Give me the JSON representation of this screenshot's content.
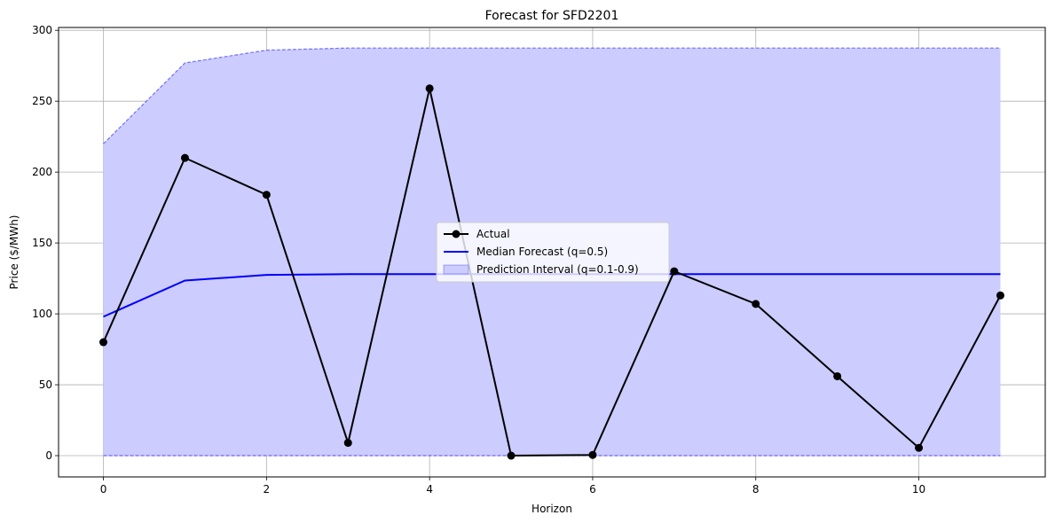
{
  "chart_data": {
    "type": "line",
    "title": "Forecast for SFD2201",
    "xlabel": "Horizon",
    "ylabel": "Price ($/MWh)",
    "xlim": [
      -0.55,
      11.55
    ],
    "ylim": [
      -15,
      302
    ],
    "xticks": [
      0,
      2,
      4,
      6,
      8,
      10
    ],
    "yticks": [
      0,
      50,
      100,
      150,
      200,
      250,
      300
    ],
    "grid": true,
    "legend_position": "center",
    "x": [
      0,
      1,
      2,
      3,
      4,
      5,
      6,
      7,
      8,
      9,
      10,
      11
    ],
    "series": [
      {
        "name": "Actual",
        "kind": "line-marker",
        "color": "#000000",
        "values": [
          80,
          210,
          184,
          9,
          259,
          0,
          0.5,
          130,
          107,
          56,
          5.5,
          113
        ]
      },
      {
        "name": "Median Forecast (q=0.5)",
        "kind": "line",
        "color": "#0000ff",
        "values": [
          98,
          123.5,
          127.5,
          128,
          128,
          128,
          128,
          128,
          128,
          128,
          128,
          128
        ]
      },
      {
        "name": "Prediction Interval (q=0.1-0.9)",
        "kind": "band",
        "color": "#0000ff",
        "fill": "#ccccff",
        "lower": [
          0,
          0,
          0,
          0,
          0,
          0,
          0,
          0,
          0,
          0,
          0,
          0
        ],
        "upper": [
          220,
          277,
          286,
          287.5,
          287.5,
          287.5,
          287.5,
          287.5,
          287.5,
          287.5,
          287.5,
          287.5
        ]
      }
    ]
  }
}
